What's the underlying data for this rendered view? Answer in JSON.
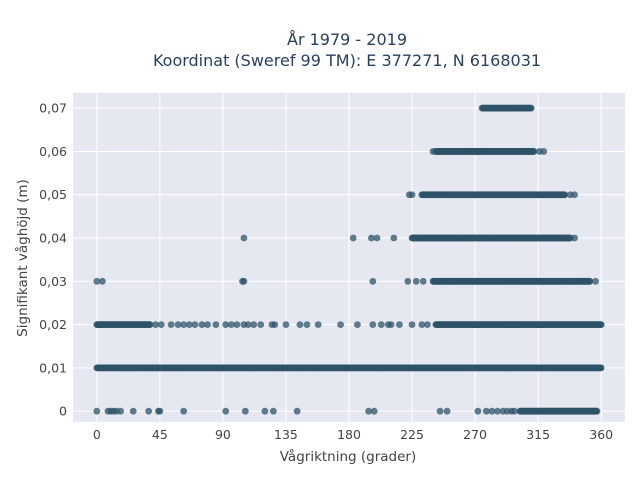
{
  "chart_data": {
    "type": "scatter",
    "title_line1": "År 1979 - 2019",
    "title_line2": "Koordinat (Sweref 99 TM): E 377271, N 6168031",
    "xlabel": "Vågriktning (grader)",
    "ylabel": "Signifikant våghöjd (m)",
    "xlim": [
      -17,
      377
    ],
    "ylim": [
      -0.0025,
      0.0735
    ],
    "x_ticks": [
      0,
      45,
      90,
      135,
      180,
      225,
      270,
      315,
      360
    ],
    "x_tick_labels": [
      "0",
      "45",
      "90",
      "135",
      "180",
      "225",
      "270",
      "315",
      "360"
    ],
    "y_ticks": [
      0,
      0.01,
      0.02,
      0.03,
      0.04,
      0.05,
      0.06,
      0.07
    ],
    "y_tick_labels": [
      "0",
      "0,01",
      "0,02",
      "0,03",
      "0,04",
      "0,05",
      "0,06",
      "0,07"
    ],
    "grid": true,
    "marker_color": "#2f5368",
    "background_color": "#e5e8f1",
    "series": [
      {
        "height": 0.07,
        "ranges": [
          [
            275,
            310
          ]
        ],
        "scatter": []
      },
      {
        "height": 0.06,
        "ranges": [
          [
            242,
            312
          ]
        ],
        "scatter": [
          240,
          316,
          319
        ]
      },
      {
        "height": 0.05,
        "ranges": [
          [
            232,
            334
          ]
        ],
        "scatter": [
          223,
          225,
          338,
          341
        ]
      },
      {
        "height": 0.04,
        "ranges": [
          [
            225,
            338
          ]
        ],
        "scatter": [
          105,
          183,
          196,
          200,
          212,
          341
        ]
      },
      {
        "height": 0.03,
        "ranges": [
          [
            240,
            352
          ]
        ],
        "scatter": [
          0,
          4,
          104,
          105,
          197,
          222,
          228,
          233,
          356
        ]
      },
      {
        "height": 0.02,
        "ranges": [
          [
            0,
            38
          ],
          [
            242,
            360
          ]
        ],
        "scatter": [
          42,
          46,
          53,
          58,
          62,
          66,
          70,
          75,
          79,
          85,
          92,
          96,
          100,
          105,
          108,
          112,
          117,
          125,
          127,
          135,
          145,
          150,
          158,
          174,
          186,
          197,
          203,
          208,
          210,
          216,
          225,
          232,
          236
        ]
      },
      {
        "height": 0.01,
        "ranges": [
          [
            0,
            360
          ]
        ],
        "scatter": []
      },
      {
        "height": 0.0,
        "ranges": [
          [
            302,
            357
          ]
        ],
        "scatter": [
          0,
          8,
          10,
          12,
          14,
          17,
          26,
          37,
          44,
          45,
          62,
          92,
          106,
          120,
          126,
          143,
          194,
          198,
          245,
          250,
          272,
          278,
          282,
          286,
          290,
          293,
          296,
          298
        ]
      }
    ]
  }
}
